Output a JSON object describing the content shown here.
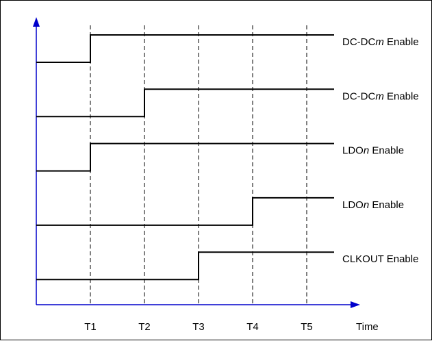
{
  "diagram": {
    "x_axis_label": "Time",
    "time_markers": [
      "T1",
      "T2",
      "T3",
      "T4",
      "T5"
    ],
    "signals": [
      {
        "name": "DC-DC",
        "index_letter": "m",
        "suffix": " Enable",
        "rise_at": "T1"
      },
      {
        "name": "DC-DC",
        "index_letter": "m",
        "suffix": " Enable",
        "rise_at": "T2"
      },
      {
        "name": "LDO",
        "index_letter": "n",
        "suffix": " Enable",
        "rise_at": "T1"
      },
      {
        "name": "LDO",
        "index_letter": "n",
        "suffix": " Enable",
        "rise_at": "T4"
      },
      {
        "name": "CLKOUT",
        "index_letter": "",
        "suffix": " Enable",
        "rise_at": "T3"
      }
    ],
    "colors": {
      "axis": "#0000cc",
      "signal": "#000000",
      "marker_line": "#000000",
      "frame": "#000000"
    }
  }
}
